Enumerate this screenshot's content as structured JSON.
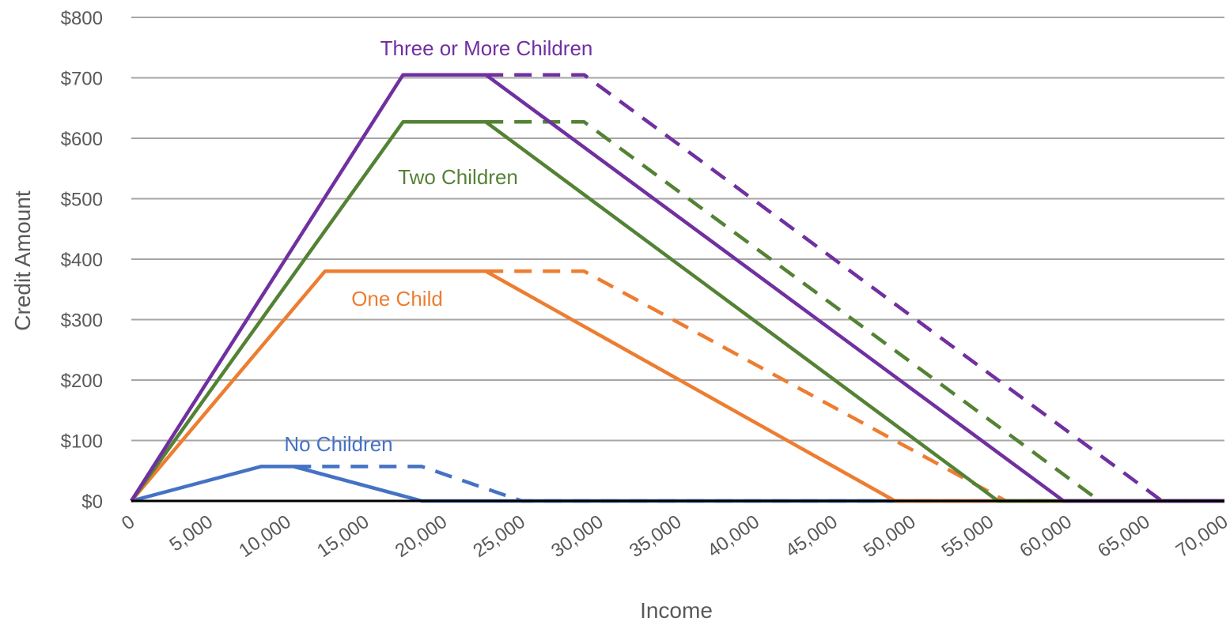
{
  "chart_data": {
    "type": "line",
    "xlabel": "Income",
    "ylabel": "Credit Amount",
    "xlim": [
      0,
      70000
    ],
    "ylim": [
      0,
      800
    ],
    "x_ticks": [
      "0",
      "5,000",
      "10,000",
      "15,000",
      "20,000",
      "25,000",
      "30,000",
      "35,000",
      "40,000",
      "45,000",
      "50,000",
      "55,000",
      "60,000",
      "65,000",
      "70,000"
    ],
    "y_ticks": [
      "$0",
      "$100",
      "$200",
      "$300",
      "$400",
      "$500",
      "$600",
      "$700",
      "$800"
    ],
    "grid": "horizontal",
    "series": [
      {
        "name": "No Children",
        "color": "#4472C4",
        "style": "solid",
        "points": [
          [
            0,
            0
          ],
          [
            8300,
            57
          ],
          [
            10400,
            57
          ],
          [
            18600,
            0
          ],
          [
            70000,
            0
          ]
        ]
      },
      {
        "name": "No Children",
        "color": "#4472C4",
        "style": "dashed",
        "points": [
          [
            10400,
            57
          ],
          [
            18600,
            57
          ],
          [
            25000,
            0
          ],
          [
            70000,
            0
          ]
        ]
      },
      {
        "name": "One Child",
        "color": "#ED7D31",
        "style": "solid",
        "points": [
          [
            0,
            0
          ],
          [
            12400,
            380
          ],
          [
            22700,
            380
          ],
          [
            48900,
            0
          ],
          [
            70000,
            0
          ]
        ]
      },
      {
        "name": "One Child",
        "color": "#ED7D31",
        "style": "dashed",
        "points": [
          [
            22700,
            380
          ],
          [
            29000,
            380
          ],
          [
            56000,
            0
          ],
          [
            70000,
            0
          ]
        ]
      },
      {
        "name": "Two Children",
        "color": "#548235",
        "style": "solid",
        "points": [
          [
            0,
            0
          ],
          [
            17400,
            627
          ],
          [
            22700,
            627
          ],
          [
            55500,
            0
          ],
          [
            70000,
            0
          ]
        ]
      },
      {
        "name": "Two Children",
        "color": "#548235",
        "style": "dashed",
        "points": [
          [
            22700,
            627
          ],
          [
            29000,
            627
          ],
          [
            62000,
            0
          ],
          [
            70000,
            0
          ]
        ]
      },
      {
        "name": "Three or More Children",
        "color": "#7030A0",
        "style": "solid",
        "points": [
          [
            0,
            0
          ],
          [
            17400,
            705
          ],
          [
            22700,
            705
          ],
          [
            59700,
            0
          ],
          [
            70000,
            0
          ]
        ]
      },
      {
        "name": "Three or More Children",
        "color": "#7030A0",
        "style": "dashed",
        "points": [
          [
            22700,
            705
          ],
          [
            29000,
            705
          ],
          [
            66000,
            0
          ],
          [
            70000,
            0
          ]
        ]
      }
    ],
    "annotations": [
      {
        "text": "Three or More Children",
        "color": "#7030A0"
      },
      {
        "text": "Two Children",
        "color": "#548235"
      },
      {
        "text": "One Child",
        "color": "#ED7D31"
      },
      {
        "text": "No Children",
        "color": "#4472C4"
      }
    ]
  }
}
